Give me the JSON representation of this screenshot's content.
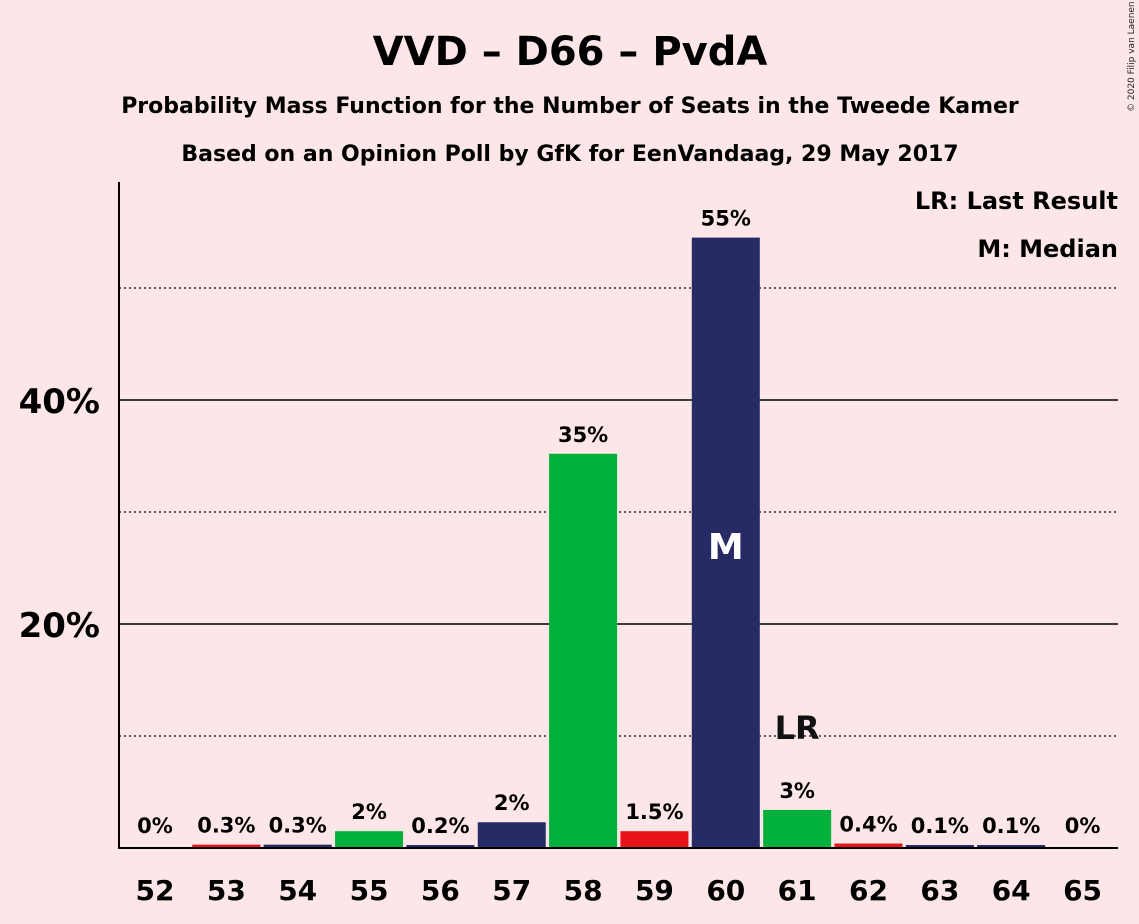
{
  "chart_data": {
    "type": "bar",
    "title": "VVD – D66 – PvdA",
    "subtitle": "Probability Mass Function for the Number of Seats in the Tweede Kamer",
    "subtitle2": "Based on an Opinion Poll by GfK for EenVandaag, 29 May 2017",
    "copyright": "© 2020 Filip van Laenen",
    "legend": [
      "LR: Last Result",
      "M: Median"
    ],
    "categories": [
      "52",
      "53",
      "54",
      "55",
      "56",
      "57",
      "58",
      "59",
      "60",
      "61",
      "62",
      "63",
      "64",
      "65"
    ],
    "values": [
      0,
      0.3,
      0.3,
      1.5,
      0.2,
      2.3,
      35.2,
      1.5,
      54.5,
      3.4,
      0.4,
      0.1,
      0.1,
      0
    ],
    "labels": [
      "0%",
      "0.3%",
      "0.3%",
      "2%",
      "0.2%",
      "2%",
      "35%",
      "1.5%",
      "55%",
      "3%",
      "0.4%",
      "0.1%",
      "0.1%",
      "0%"
    ],
    "colors": [
      "#262b66",
      "#e8141a",
      "#262b66",
      "#00b03a",
      "#262b66",
      "#262b66",
      "#00b03a",
      "#e8141a",
      "#262b66",
      "#00b03a",
      "#e8141a",
      "#262b66",
      "#262b66",
      "#262b66"
    ],
    "median_marker": {
      "category": "60",
      "text": "M"
    },
    "last_result_marker": {
      "category": "61",
      "text": "LR"
    },
    "yticks": [
      {
        "value": 20,
        "label": "20%"
      },
      {
        "value": 40,
        "label": "40%"
      }
    ],
    "ylim": [
      0,
      59.2
    ],
    "minor_gridlines": [
      10,
      30,
      50
    ]
  }
}
